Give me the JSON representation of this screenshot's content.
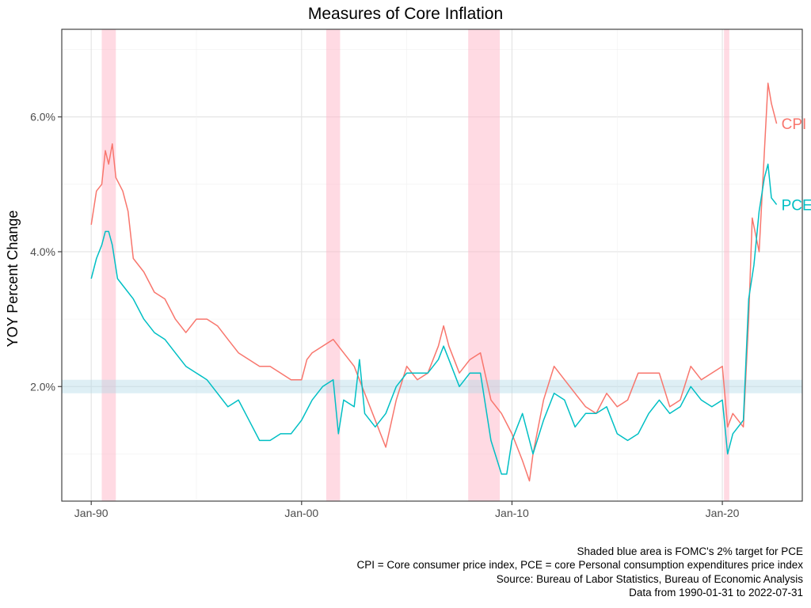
{
  "chart_data": {
    "type": "line",
    "title": "Measures of Core Inflation",
    "xlabel": "",
    "ylabel": "YOY Percent Change",
    "x_ticks": [
      "Jan-90",
      "Jan-00",
      "Jan-10",
      "Jan-20"
    ],
    "x_tick_values": [
      1990.0,
      2000.0,
      2010.0,
      2020.0
    ],
    "y_ticks": [
      "2.0%",
      "4.0%",
      "6.0%"
    ],
    "y_tick_values": [
      2.0,
      4.0,
      6.0
    ],
    "xlim": [
      1988.6,
      2023.8
    ],
    "ylim": [
      0.3,
      7.3
    ],
    "grid": true,
    "target_band": {
      "label": "FOMC's 2% target for PCE",
      "ymin": 1.9,
      "ymax": 2.1,
      "color": "#add8e6"
    },
    "recessions": [
      {
        "start": 1990.5,
        "end": 1991.17
      },
      {
        "start": 2001.17,
        "end": 2001.83
      },
      {
        "start": 2007.92,
        "end": 2009.42
      },
      {
        "start": 2020.08,
        "end": 2020.33
      }
    ],
    "recession_color": "#ffb6c8",
    "series": [
      {
        "name": "CPI",
        "color": "#f8766d",
        "points": [
          [
            1990.0,
            4.4
          ],
          [
            1990.25,
            4.9
          ],
          [
            1990.5,
            5.0
          ],
          [
            1990.67,
            5.5
          ],
          [
            1990.83,
            5.3
          ],
          [
            1991.0,
            5.6
          ],
          [
            1991.17,
            5.1
          ],
          [
            1991.5,
            4.9
          ],
          [
            1991.75,
            4.6
          ],
          [
            1992.0,
            3.9
          ],
          [
            1992.5,
            3.7
          ],
          [
            1993.0,
            3.4
          ],
          [
            1993.5,
            3.3
          ],
          [
            1994.0,
            3.0
          ],
          [
            1994.5,
            2.8
          ],
          [
            1995.0,
            3.0
          ],
          [
            1995.5,
            3.0
          ],
          [
            1996.0,
            2.9
          ],
          [
            1996.5,
            2.7
          ],
          [
            1997.0,
            2.5
          ],
          [
            1997.5,
            2.4
          ],
          [
            1998.0,
            2.3
          ],
          [
            1998.5,
            2.3
          ],
          [
            1999.0,
            2.2
          ],
          [
            1999.5,
            2.1
          ],
          [
            2000.0,
            2.1
          ],
          [
            2000.25,
            2.4
          ],
          [
            2000.5,
            2.5
          ],
          [
            2001.0,
            2.6
          ],
          [
            2001.5,
            2.7
          ],
          [
            2002.0,
            2.5
          ],
          [
            2002.5,
            2.3
          ],
          [
            2003.0,
            1.9
          ],
          [
            2003.5,
            1.5
          ],
          [
            2004.0,
            1.1
          ],
          [
            2004.5,
            1.8
          ],
          [
            2005.0,
            2.3
          ],
          [
            2005.5,
            2.1
          ],
          [
            2006.0,
            2.2
          ],
          [
            2006.5,
            2.6
          ],
          [
            2006.75,
            2.9
          ],
          [
            2007.0,
            2.6
          ],
          [
            2007.5,
            2.2
          ],
          [
            2008.0,
            2.4
          ],
          [
            2008.5,
            2.5
          ],
          [
            2009.0,
            1.8
          ],
          [
            2009.5,
            1.6
          ],
          [
            2010.0,
            1.3
          ],
          [
            2010.5,
            0.9
          ],
          [
            2010.83,
            0.6
          ],
          [
            2011.0,
            1.0
          ],
          [
            2011.5,
            1.8
          ],
          [
            2012.0,
            2.3
          ],
          [
            2012.5,
            2.1
          ],
          [
            2013.0,
            1.9
          ],
          [
            2013.5,
            1.7
          ],
          [
            2014.0,
            1.6
          ],
          [
            2014.5,
            1.9
          ],
          [
            2015.0,
            1.7
          ],
          [
            2015.5,
            1.8
          ],
          [
            2016.0,
            2.2
          ],
          [
            2016.5,
            2.2
          ],
          [
            2017.0,
            2.2
          ],
          [
            2017.5,
            1.7
          ],
          [
            2018.0,
            1.8
          ],
          [
            2018.5,
            2.3
          ],
          [
            2019.0,
            2.1
          ],
          [
            2019.5,
            2.2
          ],
          [
            2020.0,
            2.3
          ],
          [
            2020.25,
            1.4
          ],
          [
            2020.5,
            1.6
          ],
          [
            2021.0,
            1.4
          ],
          [
            2021.25,
            3.0
          ],
          [
            2021.42,
            4.5
          ],
          [
            2021.75,
            4.0
          ],
          [
            2022.0,
            5.5
          ],
          [
            2022.17,
            6.5
          ],
          [
            2022.33,
            6.2
          ],
          [
            2022.58,
            5.9
          ]
        ]
      },
      {
        "name": "PCE",
        "color": "#00bfc4",
        "points": [
          [
            1990.0,
            3.6
          ],
          [
            1990.25,
            3.9
          ],
          [
            1990.5,
            4.1
          ],
          [
            1990.67,
            4.3
          ],
          [
            1990.83,
            4.3
          ],
          [
            1991.0,
            4.1
          ],
          [
            1991.25,
            3.6
          ],
          [
            1991.5,
            3.5
          ],
          [
            1992.0,
            3.3
          ],
          [
            1992.5,
            3.0
          ],
          [
            1993.0,
            2.8
          ],
          [
            1993.5,
            2.7
          ],
          [
            1994.0,
            2.5
          ],
          [
            1994.5,
            2.3
          ],
          [
            1995.0,
            2.2
          ],
          [
            1995.5,
            2.1
          ],
          [
            1996.0,
            1.9
          ],
          [
            1996.5,
            1.7
          ],
          [
            1997.0,
            1.8
          ],
          [
            1997.5,
            1.5
          ],
          [
            1998.0,
            1.2
          ],
          [
            1998.5,
            1.2
          ],
          [
            1999.0,
            1.3
          ],
          [
            1999.5,
            1.3
          ],
          [
            2000.0,
            1.5
          ],
          [
            2000.5,
            1.8
          ],
          [
            2001.0,
            2.0
          ],
          [
            2001.5,
            2.1
          ],
          [
            2001.75,
            1.3
          ],
          [
            2002.0,
            1.8
          ],
          [
            2002.5,
            1.7
          ],
          [
            2002.75,
            2.4
          ],
          [
            2003.0,
            1.6
          ],
          [
            2003.5,
            1.4
          ],
          [
            2004.0,
            1.6
          ],
          [
            2004.5,
            2.0
          ],
          [
            2005.0,
            2.2
          ],
          [
            2005.5,
            2.2
          ],
          [
            2006.0,
            2.2
          ],
          [
            2006.5,
            2.4
          ],
          [
            2006.75,
            2.6
          ],
          [
            2007.0,
            2.4
          ],
          [
            2007.5,
            2.0
          ],
          [
            2008.0,
            2.2
          ],
          [
            2008.5,
            2.2
          ],
          [
            2009.0,
            1.2
          ],
          [
            2009.5,
            0.7
          ],
          [
            2009.75,
            0.7
          ],
          [
            2010.0,
            1.2
          ],
          [
            2010.5,
            1.6
          ],
          [
            2011.0,
            1.0
          ],
          [
            2011.5,
            1.5
          ],
          [
            2012.0,
            1.9
          ],
          [
            2012.5,
            1.8
          ],
          [
            2013.0,
            1.4
          ],
          [
            2013.5,
            1.6
          ],
          [
            2014.0,
            1.6
          ],
          [
            2014.5,
            1.7
          ],
          [
            2015.0,
            1.3
          ],
          [
            2015.5,
            1.2
          ],
          [
            2016.0,
            1.3
          ],
          [
            2016.5,
            1.6
          ],
          [
            2017.0,
            1.8
          ],
          [
            2017.5,
            1.6
          ],
          [
            2018.0,
            1.7
          ],
          [
            2018.5,
            2.0
          ],
          [
            2019.0,
            1.8
          ],
          [
            2019.5,
            1.7
          ],
          [
            2020.0,
            1.8
          ],
          [
            2020.25,
            1.0
          ],
          [
            2020.5,
            1.3
          ],
          [
            2021.0,
            1.5
          ],
          [
            2021.25,
            3.3
          ],
          [
            2021.5,
            3.8
          ],
          [
            2021.75,
            4.6
          ],
          [
            2022.0,
            5.1
          ],
          [
            2022.17,
            5.3
          ],
          [
            2022.33,
            4.8
          ],
          [
            2022.58,
            4.7
          ]
        ]
      }
    ],
    "series_labels_position": "right end of lines"
  },
  "caption": {
    "line1": "Shaded blue area is FOMC's 2% target for PCE",
    "line2": "CPI = Core consumer price index, PCE = core Personal consumption expenditures price index",
    "line3": "Source: Bureau of Labor Statistics, Bureau of Economic Analysis",
    "line4": "Data from 1990-01-31 to 2022-07-31"
  }
}
